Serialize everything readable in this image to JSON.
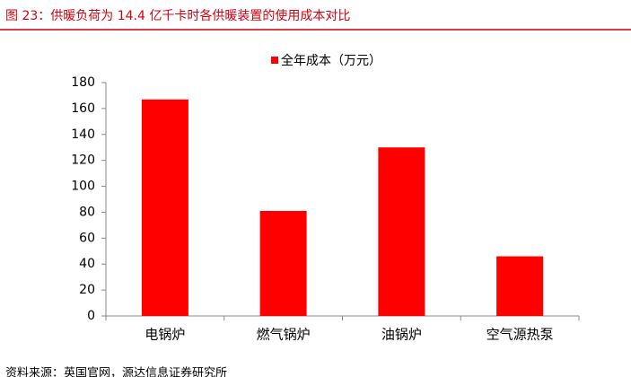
{
  "chart_data": {
    "type": "bar",
    "title": "图 23：供暖负荷为 14.4 亿千卡时各供暖装置的使用成本对比",
    "categories": [
      "电锅炉",
      "燃气锅炉",
      "油锅炉",
      "空气源热泵"
    ],
    "series": [
      {
        "name": "全年成本（万元）",
        "color": "#ff0000",
        "values": [
          167,
          81,
          130,
          46
        ]
      }
    ],
    "ylim": [
      0,
      180
    ],
    "yticks": [
      0,
      20,
      40,
      60,
      80,
      100,
      120,
      140,
      160,
      180
    ],
    "legend": "top",
    "source": "资料来源：英国官网，源达信息证券研究所"
  }
}
